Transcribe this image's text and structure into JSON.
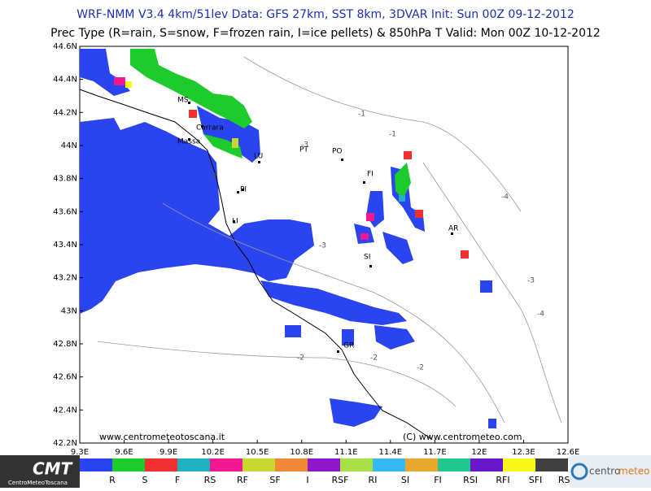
{
  "header": {
    "line1": "WRF-NMM V3.4 4km/51lev  Data: GFS 27km, SST 8km, 3DVAR  Init: Sun 00Z 09-12-2012",
    "line2": "Prec Type (R=rain, S=snow, F=frozen rain, I=ice pellets) & 850hPa T  Valid: Mon 00Z 10-12-2012"
  },
  "map": {
    "lat_labels": [
      "44.6N",
      "44.4N",
      "44.2N",
      "44N",
      "43.8N",
      "43.6N",
      "43.4N",
      "43.2N",
      "43N",
      "42.8N",
      "42.6N",
      "42.4N",
      "42.2N"
    ],
    "lon_labels": [
      "9.3E",
      "9.6E",
      "9.9E",
      "10.2E",
      "10.5E",
      "10.8E",
      "11.1E",
      "11.4E",
      "11.7E",
      "12E",
      "12.3E",
      "12.6E"
    ],
    "cities": [
      "MS",
      "Carrara",
      "Massa",
      "LU",
      "PT",
      "PO",
      "FI",
      "PI",
      "LI",
      "SI",
      "AR",
      "GR"
    ],
    "contour_labels": [
      "-1",
      "-1",
      "-2",
      "-2",
      "-2",
      "-3",
      "-3",
      "-3",
      "-4",
      "-4",
      "-2"
    ],
    "watermark_left": "www.centrometeotoscana.it",
    "watermark_right": "(C) www.centrometeo.com"
  },
  "legend": {
    "items": [
      {
        "label": "R",
        "color": "#2a44f0"
      },
      {
        "label": "S",
        "color": "#1ecb2c"
      },
      {
        "label": "F",
        "color": "#f03030"
      },
      {
        "label": "RS",
        "color": "#20b0c0"
      },
      {
        "label": "RF",
        "color": "#f01890"
      },
      {
        "label": "SF",
        "color": "#c8d830"
      },
      {
        "label": "I",
        "color": "#f08838"
      },
      {
        "label": "RSF",
        "color": "#9018c8"
      },
      {
        "label": "RI",
        "color": "#a8e048"
      },
      {
        "label": "SI",
        "color": "#38b8f0"
      },
      {
        "label": "FI",
        "color": "#e8a830"
      },
      {
        "label": "RSI",
        "color": "#20c890"
      },
      {
        "label": "RFI",
        "color": "#6818c8"
      },
      {
        "label": "SFI",
        "color": "#f8f818"
      },
      {
        "label": "RSFI",
        "color": "#404040"
      }
    ]
  },
  "logos": {
    "left_main": "CMT",
    "left_sub": "CentroMeteoToscana",
    "right_a": "centro",
    "right_b": "meteo"
  }
}
